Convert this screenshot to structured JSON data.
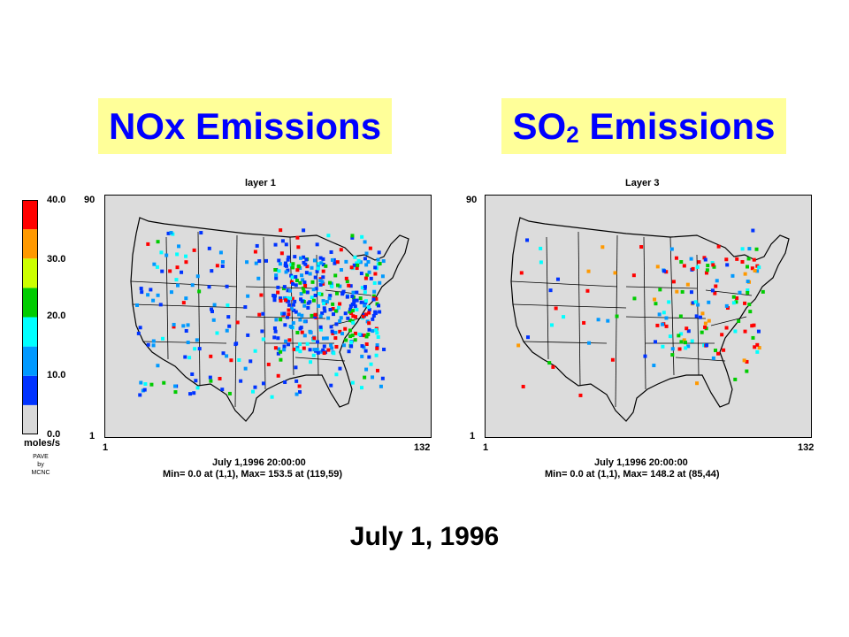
{
  "titles": {
    "nox": "NOx Emissions",
    "so2_main": "SO",
    "so2_sub": "2",
    "so2_rest": " Emissions"
  },
  "colorbar": {
    "unit": "moles/s",
    "ticks": [
      "40.0",
      "30.0",
      "20.0",
      "10.0",
      "0.0"
    ],
    "credit": [
      "PAVE",
      "by",
      "MCNC"
    ],
    "colors": [
      "#d9d9d9",
      "#0033ff",
      "#0099ff",
      "#00ffff",
      "#00cc00",
      "#ccff00",
      "#ff9900",
      "#ff0000"
    ]
  },
  "panels": [
    {
      "id": "nox",
      "layer": "layer 1",
      "y_top": "90",
      "y_bottom": "1",
      "x_left": "1",
      "x_right": "132",
      "datetime": "July 1,1996 20:00:00",
      "stats": "Min=    0.0 at (1,1), Max=   153.5 at (119,59)"
    },
    {
      "id": "so2",
      "layer": "Layer 3",
      "y_top": "90",
      "y_bottom": "1",
      "x_left": "1",
      "x_right": "132",
      "datetime": "July 1,1996 20:00:00",
      "stats": "Min=    0.0 at (1,1), Max=   148.2 at (85,44)"
    }
  ],
  "caption": "July 1, 1996"
}
